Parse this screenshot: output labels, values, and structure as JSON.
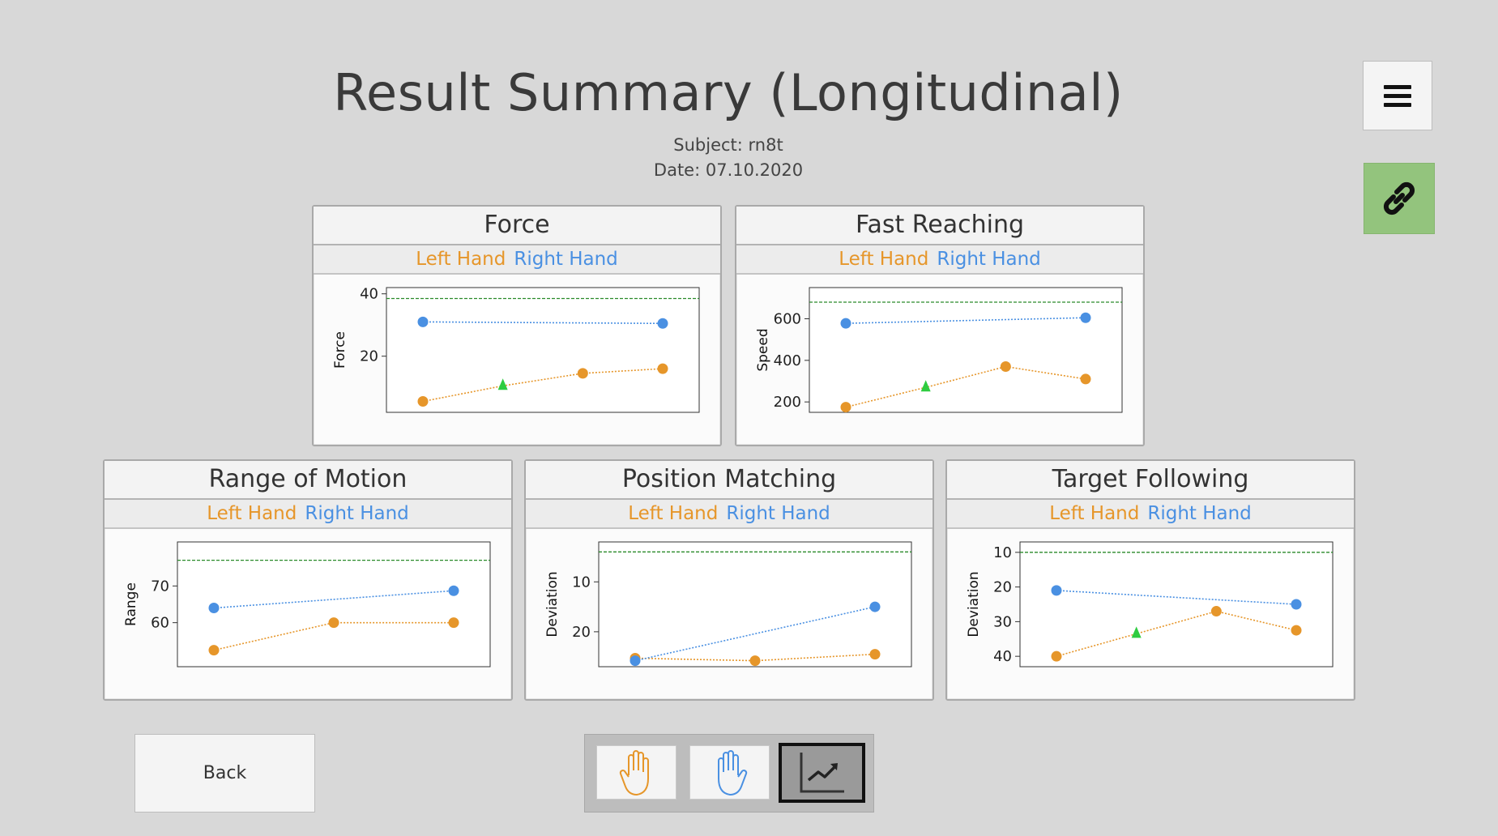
{
  "header": {
    "title": "Result Summary (Longitudinal)",
    "subject": "Subject: rn8t",
    "date": "Date: 07.10.2020"
  },
  "legend": {
    "left": "Left Hand",
    "right": "Right Hand"
  },
  "colors": {
    "left": "#e6962a",
    "right": "#4a90e2",
    "reference": "#2a8a2a",
    "marker": "#2ecc40",
    "link_button": "#93c47d"
  },
  "icons": {
    "menu": "hamburger-icon",
    "link": "link-icon",
    "left_hand": "left-hand-icon",
    "right_hand": "right-hand-icon",
    "longitudinal": "trend-chart-icon"
  },
  "footer": {
    "back_label": "Back"
  },
  "chart_data": [
    {
      "type": "line",
      "title": "Force",
      "ylabel": "Force",
      "inverted": false,
      "ylim": [
        2,
        42
      ],
      "yticks": [
        20,
        40
      ],
      "reference": 38.5,
      "x": [
        1,
        2,
        3,
        4
      ],
      "series": [
        {
          "name": "Left Hand",
          "values": [
            5.5,
            10.5,
            14.5,
            16
          ],
          "marker_index": 1
        },
        {
          "name": "Right Hand",
          "values": [
            31,
            null,
            null,
            30.5
          ]
        }
      ]
    },
    {
      "type": "line",
      "title": "Fast Reaching",
      "ylabel": "Speed",
      "inverted": false,
      "ylim": [
        150,
        750
      ],
      "yticks": [
        200,
        400,
        600
      ],
      "reference": 680,
      "x": [
        1,
        2,
        3,
        4
      ],
      "series": [
        {
          "name": "Left Hand",
          "values": [
            175,
            270,
            370,
            310
          ],
          "marker_index": 1
        },
        {
          "name": "Right Hand",
          "values": [
            578,
            null,
            null,
            605
          ]
        }
      ]
    },
    {
      "type": "line",
      "title": "Range of Motion",
      "ylabel": "Range",
      "inverted": false,
      "ylim": [
        48,
        82
      ],
      "yticks": [
        60,
        70
      ],
      "reference": 77,
      "x": [
        1,
        2,
        3
      ],
      "series": [
        {
          "name": "Left Hand",
          "values": [
            52.5,
            60,
            60
          ]
        },
        {
          "name": "Right Hand",
          "values": [
            64,
            null,
            68.7
          ]
        }
      ]
    },
    {
      "type": "line",
      "title": "Position Matching",
      "ylabel": "Deviation",
      "inverted": true,
      "ylim": [
        2,
        27
      ],
      "yticks": [
        10,
        20
      ],
      "reference": 4,
      "x": [
        1,
        2,
        3
      ],
      "series": [
        {
          "name": "Left Hand",
          "values": [
            25.3,
            25.8,
            24.5
          ]
        },
        {
          "name": "Right Hand",
          "values": [
            25.8,
            null,
            15
          ]
        }
      ]
    },
    {
      "type": "line",
      "title": "Target Following",
      "ylabel": "Deviation",
      "inverted": true,
      "ylim": [
        7,
        43
      ],
      "yticks": [
        10,
        20,
        30,
        40
      ],
      "reference": 10,
      "x": [
        1,
        2,
        3,
        4
      ],
      "series": [
        {
          "name": "Left Hand",
          "values": [
            40,
            33.5,
            27,
            32.5
          ],
          "marker_index": 1
        },
        {
          "name": "Right Hand",
          "values": [
            21,
            null,
            null,
            25
          ]
        }
      ]
    }
  ]
}
